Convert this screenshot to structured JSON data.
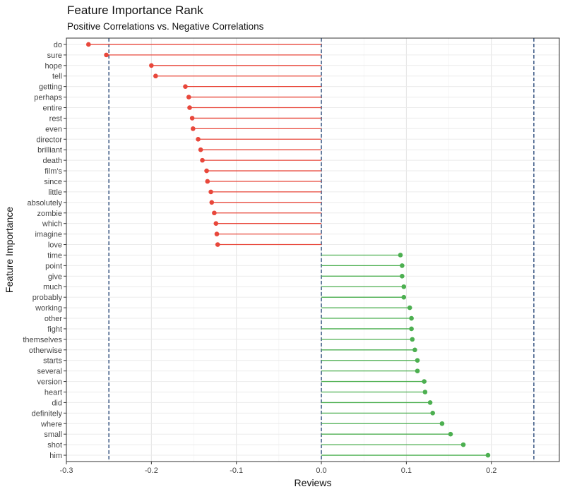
{
  "chart_data": {
    "type": "lollipop",
    "title": "Feature Importance Rank",
    "subtitle": "Positive Correlations vs. Negative Correlations",
    "xlabel": "Reviews",
    "ylabel": "Feature Importance",
    "xlim": [
      -0.3,
      0.28
    ],
    "x_ticks": [
      -0.3,
      -0.2,
      -0.1,
      0.0,
      0.1,
      0.2
    ],
    "x_tick_labels": [
      "-0.3",
      "-0.2",
      "-0.1",
      "0.0",
      "0.1",
      "0.2"
    ],
    "reference_lines": [
      -0.25,
      0.0,
      0.25
    ],
    "grid": true,
    "colors": {
      "negative": "#e8473b",
      "positive": "#4caf50",
      "reference": "#2b4a7a"
    },
    "categories": [
      "do",
      "sure",
      "hope",
      "tell",
      "getting",
      "perhaps",
      "entire",
      "rest",
      "even",
      "director",
      "brilliant",
      "death",
      "film's",
      "since",
      "little",
      "absolutely",
      "zombie",
      "which",
      "imagine",
      "love",
      "time",
      "point",
      "give",
      "much",
      "probably",
      "working",
      "other",
      "fight",
      "themselves",
      "otherwise",
      "starts",
      "several",
      "version",
      "heart",
      "did",
      "definitely",
      "where",
      "small",
      "shot",
      "him"
    ],
    "values": [
      -0.274,
      -0.253,
      -0.2,
      -0.195,
      -0.16,
      -0.156,
      -0.155,
      -0.152,
      -0.151,
      -0.145,
      -0.142,
      -0.14,
      -0.135,
      -0.134,
      -0.13,
      -0.129,
      -0.126,
      -0.124,
      -0.123,
      -0.122,
      0.093,
      0.095,
      0.095,
      0.097,
      0.097,
      0.104,
      0.106,
      0.106,
      0.107,
      0.11,
      0.113,
      0.113,
      0.121,
      0.122,
      0.128,
      0.131,
      0.142,
      0.152,
      0.167,
      0.196
    ]
  }
}
